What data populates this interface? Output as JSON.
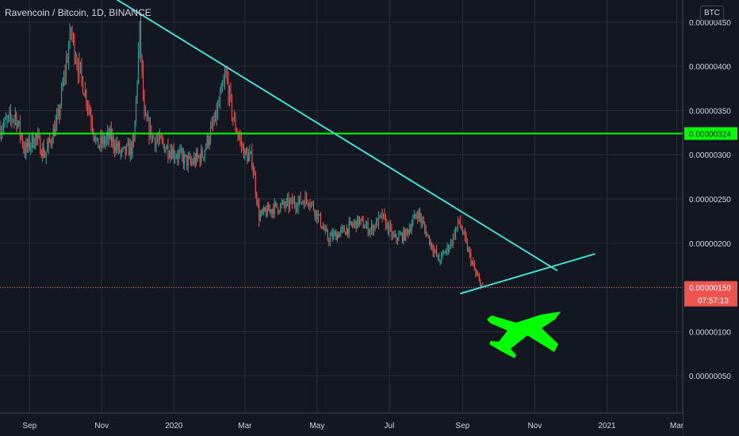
{
  "header": {
    "title": "Ravencoin / Bitcoin, 1D, BINANCE",
    "currency_button": "BTC"
  },
  "price_tag": {
    "label": "0.00000150",
    "countdown": "07:57:13"
  },
  "level_tag": {
    "label": "0.00000324"
  },
  "colors": {
    "background": "#131722",
    "grid": "#2a2e39",
    "up": "#26a69a",
    "down": "#ef5350",
    "trendline": "#40e0d0",
    "level": "#00ff00",
    "plane": "#00ff00"
  },
  "chart_data": {
    "type": "candlestick",
    "title": "Ravencoin / Bitcoin, 1D, BINANCE",
    "y_ticks": [
      {
        "value": 5e-07,
        "label": "0.00000050"
      },
      {
        "value": 1e-06,
        "label": "0.00000100"
      },
      {
        "value": 1.5e-06,
        "label": "0.00000150"
      },
      {
        "value": 2e-06,
        "label": "0.00000200"
      },
      {
        "value": 2.5e-06,
        "label": "0.00000250"
      },
      {
        "value": 3e-06,
        "label": "0.00000300"
      },
      {
        "value": 3.5e-06,
        "label": "0.00000350"
      },
      {
        "value": 4e-06,
        "label": "0.00000400"
      },
      {
        "value": 4.5e-06,
        "label": "0.00000450"
      }
    ],
    "x_ticks": [
      {
        "date": "2019-09-01",
        "label": "Sep"
      },
      {
        "date": "2019-11-01",
        "label": "Nov"
      },
      {
        "date": "2020-01-01",
        "label": "2020"
      },
      {
        "date": "2020-03-01",
        "label": "Mar"
      },
      {
        "date": "2020-05-01",
        "label": "May"
      },
      {
        "date": "2020-07-01",
        "label": "Jul"
      },
      {
        "date": "2020-09-01",
        "label": "Sep"
      },
      {
        "date": "2020-11-01",
        "label": "Nov"
      },
      {
        "date": "2021-01-01",
        "label": "2021"
      },
      {
        "date": "2021-03-01",
        "label": "Mar"
      }
    ],
    "x_range": [
      "2019-08-07",
      "2021-03-06"
    ],
    "y_range": [
      8e-08,
      4.75e-06
    ],
    "price_anchors": [
      [
        "2019-08-07",
        3.3e-06
      ],
      [
        "2019-08-20",
        3.45e-06
      ],
      [
        "2019-08-28",
        3.05e-06
      ],
      [
        "2019-09-06",
        3.2e-06
      ],
      [
        "2019-09-14",
        3e-06
      ],
      [
        "2019-09-25",
        3.4e-06
      ],
      [
        "2019-10-06",
        4.4e-06
      ],
      [
        "2019-10-12",
        4e-06
      ],
      [
        "2019-10-20",
        3.6e-06
      ],
      [
        "2019-10-28",
        3.1e-06
      ],
      [
        "2019-11-08",
        3.2e-06
      ],
      [
        "2019-11-18",
        3e-06
      ],
      [
        "2019-11-28",
        3.1e-06
      ],
      [
        "2019-12-03",
        4.4e-06
      ],
      [
        "2019-12-07",
        3.4e-06
      ],
      [
        "2019-12-14",
        3.2e-06
      ],
      [
        "2019-12-24",
        3.1e-06
      ],
      [
        "2020-01-04",
        3e-06
      ],
      [
        "2020-01-15",
        2.9e-06
      ],
      [
        "2020-01-25",
        3e-06
      ],
      [
        "2020-02-05",
        3.4e-06
      ],
      [
        "2020-02-14",
        3.9e-06
      ],
      [
        "2020-02-20",
        3.4e-06
      ],
      [
        "2020-03-01",
        3e-06
      ],
      [
        "2020-03-07",
        2.95e-06
      ],
      [
        "2020-03-13",
        2.3e-06
      ],
      [
        "2020-03-25",
        2.4e-06
      ],
      [
        "2020-04-10",
        2.45e-06
      ],
      [
        "2020-04-24",
        2.5e-06
      ],
      [
        "2020-05-02",
        2.3e-06
      ],
      [
        "2020-05-10",
        2.05e-06
      ],
      [
        "2020-05-25",
        2.15e-06
      ],
      [
        "2020-06-05",
        2.25e-06
      ],
      [
        "2020-06-15",
        2.15e-06
      ],
      [
        "2020-06-25",
        2.3e-06
      ],
      [
        "2020-07-05",
        2.05e-06
      ],
      [
        "2020-07-15",
        2.1e-06
      ],
      [
        "2020-07-25",
        2.35e-06
      ],
      [
        "2020-08-05",
        2e-06
      ],
      [
        "2020-08-12",
        1.8e-06
      ],
      [
        "2020-08-22",
        2e-06
      ],
      [
        "2020-08-29",
        2.25e-06
      ],
      [
        "2020-09-06",
        1.9e-06
      ],
      [
        "2020-09-12",
        1.65e-06
      ],
      [
        "2020-09-18",
        1.5e-06
      ]
    ],
    "trendlines": [
      {
        "name": "descending",
        "points": [
          [
            "2019-10-15",
            5e-06
          ],
          [
            "2020-11-20",
            1.69e-06
          ]
        ]
      },
      {
        "name": "ascending",
        "points": [
          [
            "2020-08-30",
            1.43e-06
          ],
          [
            "2020-12-22",
            1.88e-06
          ]
        ]
      }
    ],
    "horizontal_levels": [
      {
        "value": 3.24e-06,
        "label": "0.00000324"
      }
    ],
    "last_price": 1.5e-06,
    "grid": true,
    "axis_position": "right"
  }
}
